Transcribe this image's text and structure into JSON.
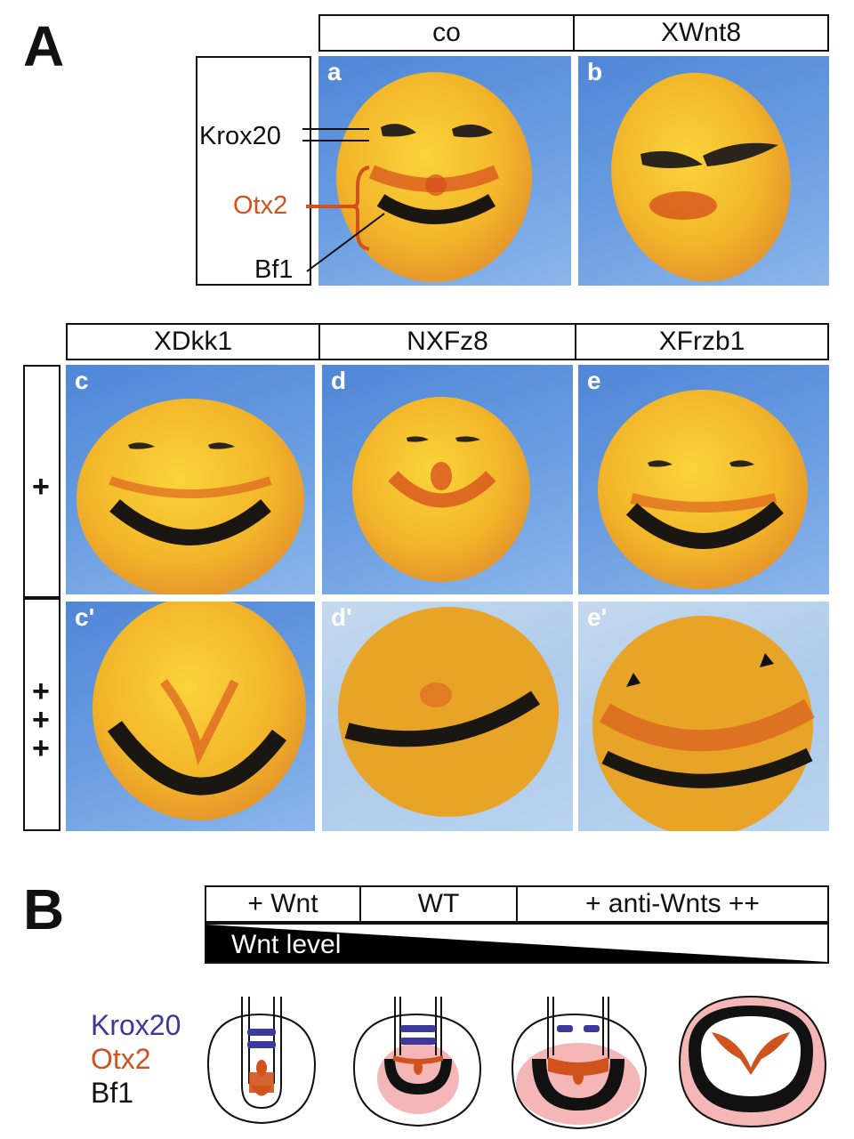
{
  "panel_A": {
    "letter": "A",
    "top_headers": [
      "co",
      "XWnt8"
    ],
    "subpanels_top": [
      "a",
      "b"
    ],
    "markers": {
      "krox20": "Krox20",
      "otx2": "Otx2",
      "bf1": "Bf1"
    },
    "mid_headers": [
      "XDkk1",
      "NXFz8",
      "XFrzb1"
    ],
    "subpanels_mid": [
      "c",
      "d",
      "e"
    ],
    "subpanels_low": [
      "c'",
      "d'",
      "e'"
    ],
    "rows": {
      "single": "+",
      "triple": [
        "+",
        "+",
        "+"
      ]
    }
  },
  "panel_B": {
    "letter": "B",
    "conditions": [
      "+ Wnt",
      "WT",
      "+ anti-Wnts ++"
    ],
    "gradient_label": "Wnt level",
    "legend": {
      "krox20": "Krox20",
      "otx2": "Otx2",
      "bf1": "Bf1"
    }
  },
  "colors": {
    "krox20": "#3b3a9a",
    "otx2": "#d0521c",
    "bf1": "#111111",
    "pink_zone": "#f4b6b6",
    "embryo": "#f2c021"
  }
}
